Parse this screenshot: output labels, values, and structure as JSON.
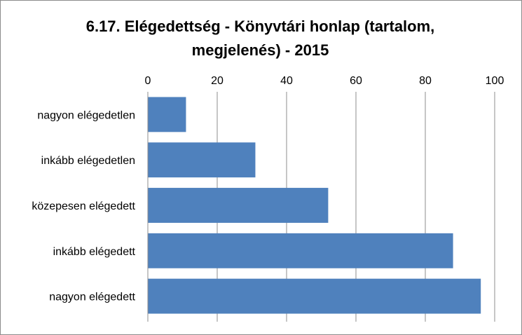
{
  "chart_data": {
    "type": "bar",
    "orientation": "horizontal",
    "title_lines": [
      "6.17.  Elégedettség - Könyvtári honlap (tartalom,",
      "megjelenés) - 2015"
    ],
    "categories": [
      "nagyon elégedetlen",
      "inkább elégedetlen",
      "közepesen elégedett",
      "inkább elégedett",
      "nagyon elégedett"
    ],
    "values": [
      11,
      31,
      52,
      88,
      96
    ],
    "xlim": [
      0,
      100
    ],
    "x_ticks": [
      "0",
      "20",
      "40",
      "60",
      "80",
      "100"
    ],
    "x_axis_position": "top",
    "grid": true,
    "legend": "none",
    "bar_color": "#4f81bd"
  }
}
